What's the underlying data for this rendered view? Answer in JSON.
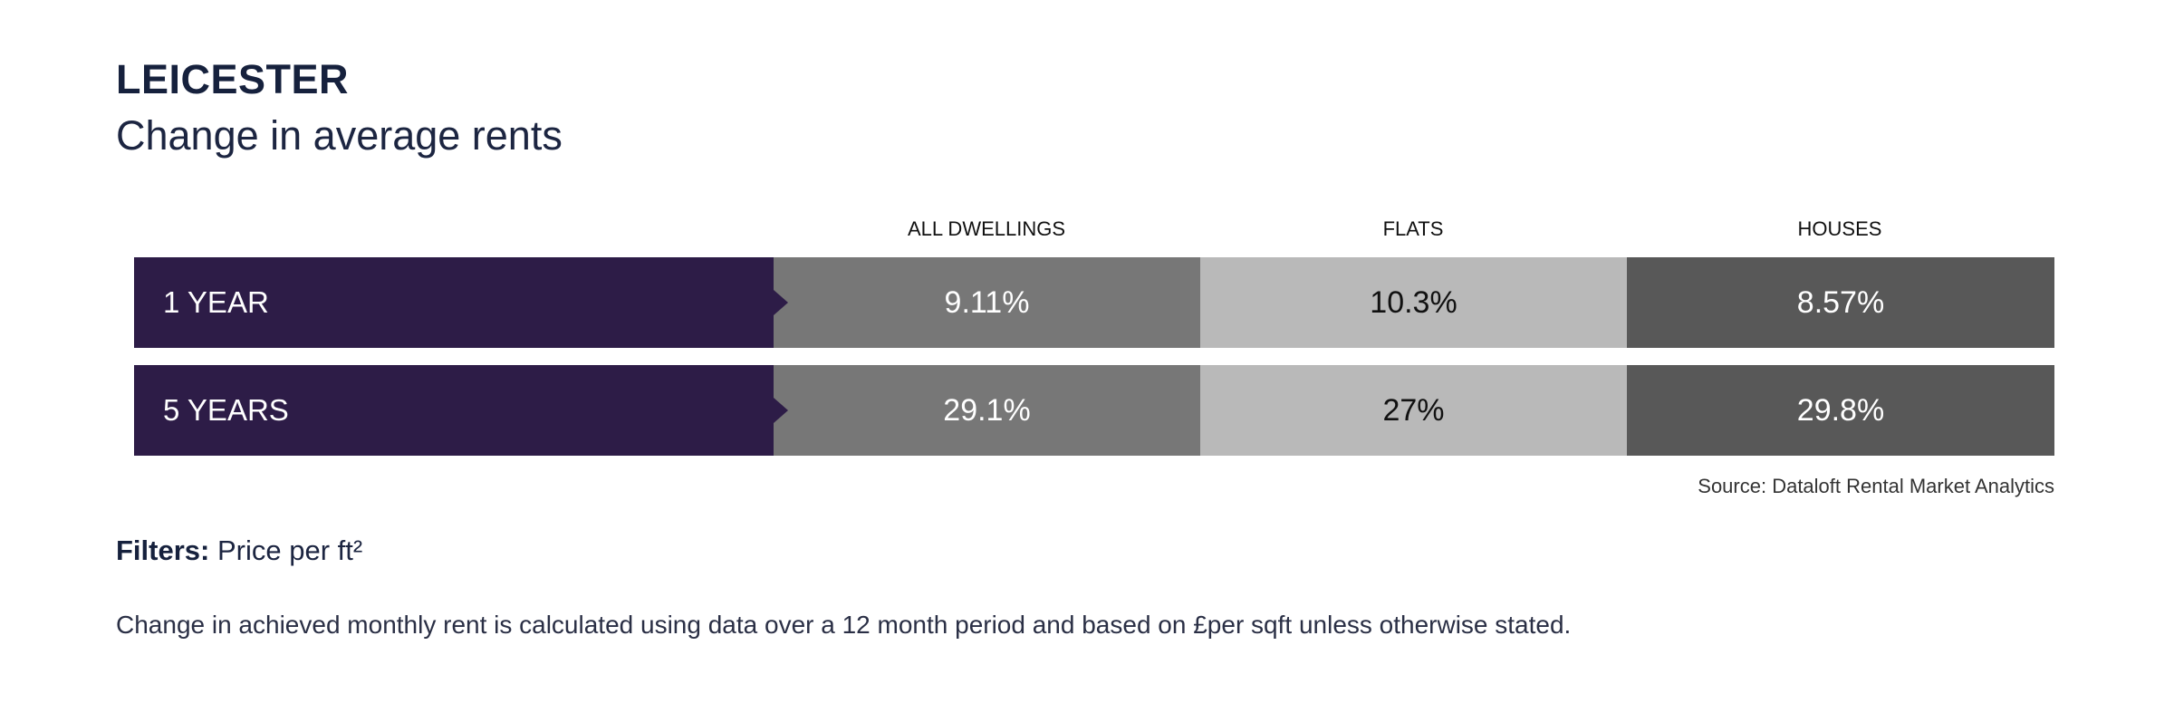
{
  "header": {
    "title": "LEICESTER",
    "subtitle": "Change in average rents"
  },
  "chart_data": {
    "type": "table",
    "title": "LEICESTER",
    "subtitle": "Change in average rents",
    "columns": [
      "ALL DWELLINGS",
      "FLATS",
      "HOUSES"
    ],
    "rows": [
      {
        "label": "1 YEAR",
        "values": [
          "9.11%",
          "10.3%",
          "8.57%"
        ]
      },
      {
        "label": "5 YEARS",
        "values": [
          "29.1%",
          "27%",
          "29.8%"
        ]
      }
    ],
    "colors": {
      "label_bg": "#2d1c47",
      "all_dwellings_bg": "#777777",
      "flats_bg": "#b9b9b9",
      "houses_bg": "#585858"
    }
  },
  "footer": {
    "source": "Source: Dataloft Rental Market Analytics",
    "filters_label": "Filters:",
    "filters_value": "Price per ft²",
    "note": "Change in achieved monthly rent is calculated using data over a 12 month period and based on £per sqft unless otherwise stated."
  }
}
